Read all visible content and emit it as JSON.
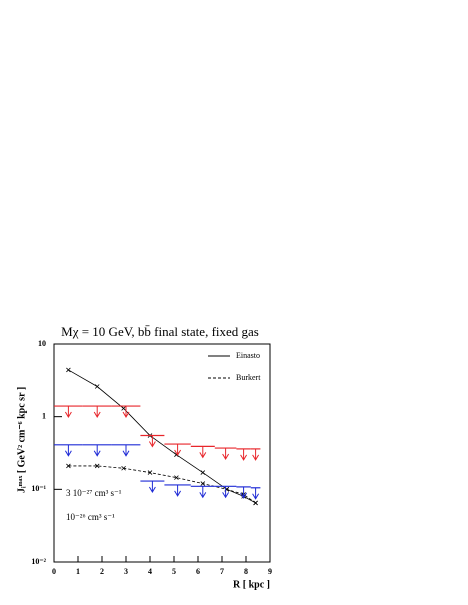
{
  "chart_data": {
    "type": "line",
    "title": "Mχ = 10 GeV, bb̄ final state, fixed gas",
    "x_label": "R [ kpc ]",
    "y_label": "Jᵢᵐᵃˣ [ GeV² cm⁻⁶ kpc sr ]",
    "log_y": true,
    "xlim": [
      0,
      9
    ],
    "xticks": [
      0,
      1,
      2,
      3,
      4,
      5,
      6,
      7,
      8,
      9
    ],
    "ylim": [
      0.01,
      10
    ],
    "yticks": [
      {
        "value": 0.01,
        "label": "10⁻²"
      },
      {
        "value": 0.1,
        "label": "10⁻¹"
      },
      1,
      10
    ],
    "legend": "top-right",
    "x": [
      0.6,
      1.8,
      2.9,
      4,
      5.1,
      6.2,
      7.2,
      7.9,
      8.4
    ],
    "series": [
      {
        "name": "Einasto",
        "color": "#000000",
        "style": "solid",
        "values": [
          4.4,
          2.6,
          1.3,
          0.55,
          0.3,
          0.17,
          0.1,
          0.08,
          0.065
        ]
      },
      {
        "name": "Burkert",
        "color": "#000000",
        "style": "dashed",
        "values": [
          0.21,
          0.21,
          0.195,
          0.17,
          0.145,
          0.12,
          0.1,
          0.085,
          0.065
        ]
      }
    ],
    "bins": [
      0,
      1.2,
      2.4,
      3.6,
      4.6,
      5.7,
      6.7,
      7.6,
      8.2,
      8.6
    ],
    "limits": [
      {
        "name": "3 10⁻²⁷ cm³ s⁻¹",
        "color": "#e8262b",
        "values": [
          1.4,
          1.4,
          1.4,
          0.55,
          0.42,
          0.39,
          0.37,
          0.36,
          0.36
        ]
      },
      {
        "name": "10⁻²⁶ cm³ s⁻¹",
        "color": "#1f2bd6",
        "values": [
          0.41,
          0.41,
          0.41,
          0.13,
          0.115,
          0.11,
          0.11,
          0.108,
          0.105
        ]
      }
    ]
  }
}
